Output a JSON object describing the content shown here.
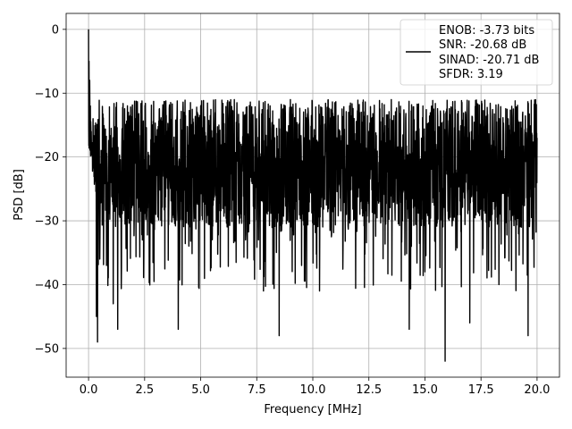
{
  "chart_data": {
    "type": "line",
    "title": "",
    "xlabel": "Frequency [MHz]",
    "ylabel": "PSD [dB]",
    "xlim": [
      -1.0,
      21.0
    ],
    "ylim": [
      -54.5,
      2.5
    ],
    "xticks": [
      0.0,
      2.5,
      5.0,
      7.5,
      10.0,
      12.5,
      15.0,
      17.5,
      20.0
    ],
    "xtick_labels": [
      "0.0",
      "2.5",
      "5.0",
      "7.5",
      "10.0",
      "12.5",
      "15.0",
      "17.5",
      "20.0"
    ],
    "yticks": [
      0,
      -10,
      -20,
      -30,
      -40,
      -50
    ],
    "ytick_labels": [
      "0",
      "−10",
      "−20",
      "−30",
      "−40",
      "−50"
    ],
    "grid": true,
    "legend_position": "top-right",
    "legend_lines": [
      "ENOB: -3.73 bits",
      "SNR: -20.68 dB",
      "SINAD: -20.71 dB",
      "SFDR: 3.19"
    ],
    "line_color": "#000000",
    "series": [
      {
        "x": [
          0.0,
          0.02,
          0.05,
          0.08,
          0.12,
          0.16,
          0.2,
          0.25,
          0.3,
          0.35,
          0.4,
          0.45,
          0.5,
          0.6,
          0.7,
          0.8,
          1.0,
          1.1,
          1.3,
          1.6,
          2.0,
          2.4,
          3.0,
          3.5,
          4.0,
          4.5,
          5.0,
          5.5,
          6.0,
          6.5,
          7.0,
          7.5,
          7.8,
          8.3,
          8.5,
          9.0,
          9.5,
          10.0,
          10.3,
          11.0,
          11.5,
          12.0,
          12.5,
          13.0,
          13.5,
          14.0,
          14.3,
          14.6,
          15.0,
          15.5,
          15.9,
          16.4,
          17.0,
          17.5,
          18.0,
          18.3,
          18.8,
          19.3,
          19.6,
          19.9,
          20.0
        ],
        "y": [
          0.0,
          -5.0,
          -8.0,
          -12.0,
          -16.0,
          -19.0,
          -14.0,
          -20.0,
          -17.0,
          -45.0,
          -49.0,
          -20.0,
          -36.0,
          -22.0,
          -16.0,
          -37.0,
          -24.0,
          -43.0,
          -47.0,
          -22.0,
          -16.0,
          -33.0,
          -29.0,
          -16.0,
          -47.0,
          -22.0,
          -12.0,
          -31.0,
          -22.0,
          -11.0,
          -33.0,
          -14.0,
          -41.0,
          -17.0,
          -48.0,
          -11.0,
          -37.0,
          -23.0,
          -41.0,
          -12.0,
          -29.0,
          -21.0,
          -16.0,
          -27.0,
          -11.0,
          -30.0,
          -47.0,
          -16.0,
          -38.0,
          -19.0,
          -52.0,
          -23.0,
          -46.0,
          -17.0,
          -29.0,
          -40.0,
          -18.0,
          -31.0,
          -48.0,
          -20.0,
          -17.0
        ]
      }
    ]
  }
}
